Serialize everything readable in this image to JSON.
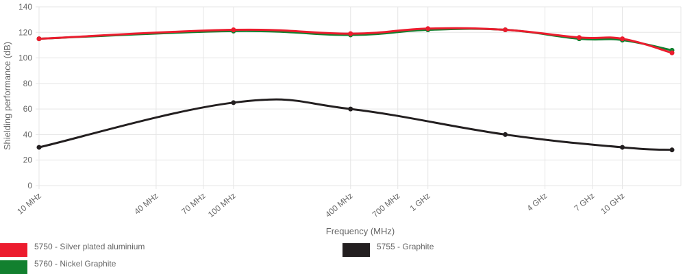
{
  "chart_data": {
    "type": "line",
    "xlabel": "Frequency (MHz)",
    "ylabel": "Shielding performance (dB)",
    "x_scale": "log",
    "ylim": [
      0,
      140
    ],
    "y_ticks": [
      0,
      20,
      40,
      60,
      80,
      100,
      120,
      140
    ],
    "x_ticks": [
      {
        "value": 10,
        "label": "10 MHz"
      },
      {
        "value": 40,
        "label": "40 MHz"
      },
      {
        "value": 70,
        "label": "70 MHz"
      },
      {
        "value": 100,
        "label": "100 MHz"
      },
      {
        "value": 400,
        "label": "400 MHz"
      },
      {
        "value": 700,
        "label": "700 MHz"
      },
      {
        "value": 1000,
        "label": "1 GHz"
      },
      {
        "value": 4000,
        "label": "4 GHz"
      },
      {
        "value": 7000,
        "label": "7 GHz"
      },
      {
        "value": 10000,
        "label": "10 GHz"
      }
    ],
    "grid": true,
    "legend_position": "bottom",
    "series": [
      {
        "name": "5750 - Silver plated aluminium",
        "color": "#ec1c2e",
        "points": [
          [
            10,
            115
          ],
          [
            100,
            122
          ],
          [
            400,
            119
          ],
          [
            1000,
            123
          ],
          [
            2500,
            122
          ],
          [
            6000,
            116
          ],
          [
            10000,
            115
          ],
          [
            18000,
            104
          ]
        ]
      },
      {
        "name": "5755 - Graphite",
        "color": "#231f20",
        "points": [
          [
            10,
            30
          ],
          [
            100,
            65
          ],
          [
            400,
            60
          ],
          [
            2500,
            40
          ],
          [
            10000,
            30
          ],
          [
            18000,
            28
          ]
        ]
      },
      {
        "name": "5760 - Nickel Graphite",
        "color": "#12802f",
        "points": [
          [
            10,
            115
          ],
          [
            100,
            121
          ],
          [
            400,
            118
          ],
          [
            1000,
            122
          ],
          [
            2500,
            122
          ],
          [
            6000,
            115
          ],
          [
            10000,
            114
          ],
          [
            18000,
            106
          ]
        ]
      }
    ]
  }
}
